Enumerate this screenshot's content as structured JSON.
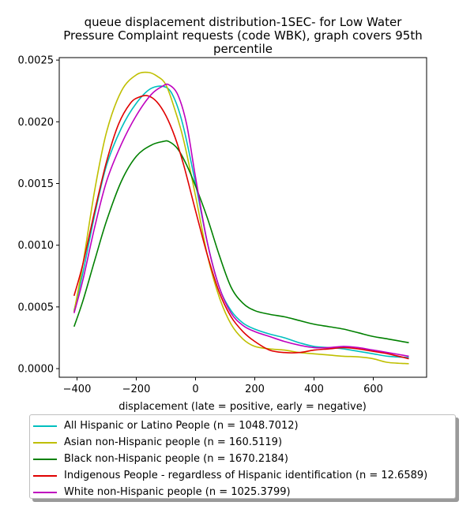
{
  "chart_data": {
    "type": "line",
    "title_lines": [
      "queue displacement distribution-1SEC-  for Low Water",
      "Pressure Complaint  requests (code WBK), graph covers 95th",
      "percentile"
    ],
    "xlabel": "displacement (late = positive, early = negative)",
    "ylabel": "",
    "xlim": [
      -460,
      780
    ],
    "ylim": [
      -7e-05,
      0.00252
    ],
    "x_ticks": [
      -400,
      -200,
      0,
      200,
      400,
      600
    ],
    "x_tick_labels": [
      "−400",
      "−200",
      "0",
      "200",
      "400",
      "600"
    ],
    "y_ticks": [
      0.0,
      0.0005,
      0.001,
      0.0015,
      0.002,
      0.0025
    ],
    "y_tick_labels": [
      "0.0000",
      "0.0005",
      "0.0010",
      "0.0015",
      "0.0020",
      "0.0025"
    ],
    "grid": false,
    "legend_position": "bottom-outside",
    "series": [
      {
        "name": "All Hispanic or Latino People (n = 1048.7012)",
        "color": "#00bfbf",
        "x": [
          -410,
          -380,
          -340,
          -300,
          -250,
          -200,
          -150,
          -100,
          -70,
          -40,
          0,
          40,
          80,
          120,
          160,
          200,
          250,
          300,
          350,
          400,
          450,
          500,
          550,
          600,
          650,
          720
        ],
        "y": [
          0.00047,
          0.00078,
          0.00125,
          0.00165,
          0.00195,
          0.00215,
          0.00227,
          0.00228,
          0.00218,
          0.00195,
          0.0015,
          0.00102,
          0.00066,
          0.00047,
          0.00037,
          0.00032,
          0.00028,
          0.00025,
          0.00021,
          0.00018,
          0.00017,
          0.00016,
          0.00014,
          0.00012,
          0.0001,
          9e-05
        ]
      },
      {
        "name": "Asian non-Hispanic people (n = 160.5119)",
        "color": "#bfbf00",
        "x": [
          -410,
          -380,
          -340,
          -300,
          -250,
          -200,
          -160,
          -130,
          -100,
          -70,
          -40,
          0,
          40,
          80,
          120,
          160,
          200,
          250,
          300,
          350,
          400,
          450,
          500,
          550,
          600,
          650,
          720
        ],
        "y": [
          0.00046,
          0.00085,
          0.00145,
          0.00192,
          0.00225,
          0.00238,
          0.0024,
          0.00237,
          0.0023,
          0.0021,
          0.00185,
          0.0014,
          0.00092,
          0.00058,
          0.00036,
          0.00024,
          0.00018,
          0.00016,
          0.00015,
          0.00013,
          0.00012,
          0.00011,
          0.0001,
          9.5e-05,
          8e-05,
          5e-05,
          4e-05
        ]
      },
      {
        "name": "Black non-Hispanic people (n = 1670.2184)",
        "color": "#008000",
        "x": [
          -410,
          -380,
          -340,
          -300,
          -250,
          -200,
          -150,
          -110,
          -90,
          -60,
          -30,
          0,
          40,
          80,
          120,
          160,
          200,
          250,
          300,
          350,
          400,
          450,
          500,
          550,
          600,
          650,
          720
        ],
        "y": [
          0.00034,
          0.00055,
          0.00088,
          0.0012,
          0.00152,
          0.00172,
          0.00181,
          0.00184,
          0.00184,
          0.00178,
          0.00165,
          0.00148,
          0.00122,
          0.00092,
          0.00066,
          0.00053,
          0.00047,
          0.00044,
          0.00042,
          0.00039,
          0.00036,
          0.00034,
          0.00032,
          0.00029,
          0.00026,
          0.00024,
          0.00021
        ]
      },
      {
        "name": "Indigenous People - regardless of Hispanic identification (n = 12.6589)",
        "color": "#e00000",
        "x": [
          -410,
          -380,
          -340,
          -300,
          -260,
          -220,
          -190,
          -160,
          -130,
          -100,
          -70,
          -40,
          0,
          40,
          80,
          120,
          160,
          200,
          250,
          300,
          350,
          400,
          450,
          500,
          550,
          600,
          650,
          720
        ],
        "y": [
          0.00059,
          0.00085,
          0.00128,
          0.00168,
          0.00198,
          0.00215,
          0.0022,
          0.00221,
          0.00216,
          0.00205,
          0.00188,
          0.00165,
          0.00128,
          0.00092,
          0.00062,
          0.00042,
          0.0003,
          0.00022,
          0.00015,
          0.00013,
          0.00013,
          0.00015,
          0.00016,
          0.00017,
          0.00016,
          0.00014,
          0.00012,
          8e-05
        ]
      },
      {
        "name": "White non-Hispanic people (n = 1025.3799)",
        "color": "#bf00bf",
        "x": [
          -410,
          -380,
          -340,
          -300,
          -250,
          -200,
          -150,
          -110,
          -90,
          -60,
          -30,
          0,
          40,
          80,
          120,
          160,
          200,
          250,
          300,
          350,
          400,
          450,
          500,
          550,
          600,
          650,
          720
        ],
        "y": [
          0.00045,
          0.00072,
          0.00115,
          0.00152,
          0.00182,
          0.00205,
          0.00222,
          0.00229,
          0.0023,
          0.00222,
          0.00198,
          0.00155,
          0.00102,
          0.00066,
          0.00045,
          0.00035,
          0.0003,
          0.00026,
          0.00022,
          0.00019,
          0.00017,
          0.00017,
          0.00018,
          0.00017,
          0.00015,
          0.00013,
          0.0001
        ]
      }
    ]
  }
}
